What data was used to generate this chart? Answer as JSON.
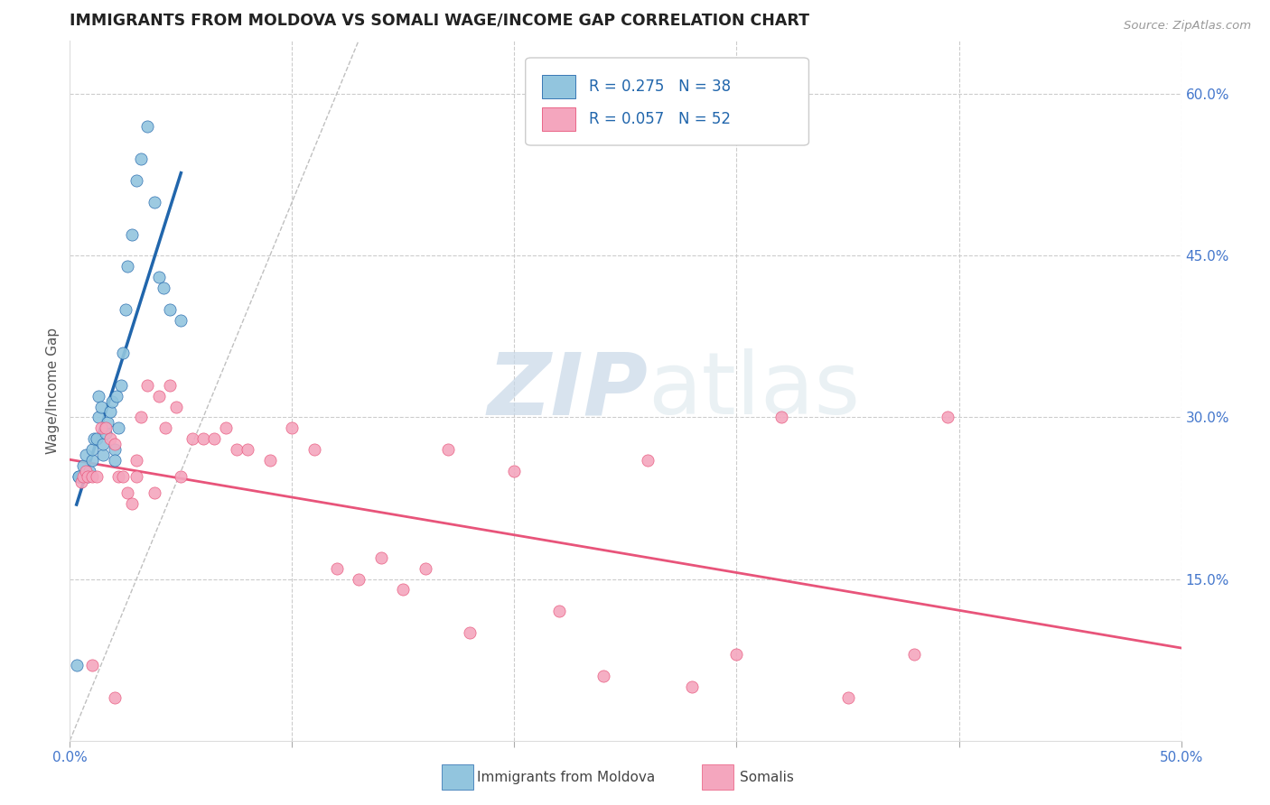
{
  "title": "IMMIGRANTS FROM MOLDOVA VS SOMALI WAGE/INCOME GAP CORRELATION CHART",
  "source": "Source: ZipAtlas.com",
  "ylabel": "Wage/Income Gap",
  "xlim": [
    0.0,
    0.5
  ],
  "ylim": [
    0.0,
    0.65
  ],
  "xticks": [
    0.0,
    0.1,
    0.2,
    0.3,
    0.4,
    0.5
  ],
  "xticklabels": [
    "0.0%",
    "",
    "",
    "",
    "",
    "50.0%"
  ],
  "yticks": [
    0.15,
    0.3,
    0.45,
    0.6
  ],
  "yticklabels": [
    "15.0%",
    "30.0%",
    "45.0%",
    "60.0%"
  ],
  "R_moldova": 0.275,
  "N_moldova": 38,
  "R_somali": 0.057,
  "N_somali": 52,
  "color_moldova": "#92c5de",
  "color_somali": "#f4a6be",
  "trendline_moldova_color": "#2166ac",
  "trendline_somali_color": "#e8547a",
  "diagonal_color": "#c0c0c0",
  "legend_label_moldova": "Immigrants from Moldova",
  "legend_label_somali": "Somalis",
  "watermark_zip": "ZIP",
  "watermark_atlas": "atlas",
  "moldova_x": [
    0.003,
    0.004,
    0.005,
    0.006,
    0.007,
    0.008,
    0.009,
    0.01,
    0.01,
    0.011,
    0.012,
    0.013,
    0.013,
    0.014,
    0.015,
    0.015,
    0.016,
    0.017,
    0.018,
    0.019,
    0.02,
    0.02,
    0.021,
    0.022,
    0.023,
    0.024,
    0.025,
    0.026,
    0.028,
    0.03,
    0.032,
    0.035,
    0.038,
    0.04,
    0.042,
    0.045,
    0.05,
    0.004
  ],
  "moldova_y": [
    0.07,
    0.245,
    0.245,
    0.255,
    0.265,
    0.245,
    0.25,
    0.26,
    0.27,
    0.28,
    0.28,
    0.3,
    0.32,
    0.31,
    0.265,
    0.275,
    0.285,
    0.295,
    0.305,
    0.315,
    0.27,
    0.26,
    0.32,
    0.29,
    0.33,
    0.36,
    0.4,
    0.44,
    0.47,
    0.52,
    0.54,
    0.57,
    0.5,
    0.43,
    0.42,
    0.4,
    0.39,
    0.245
  ],
  "somali_x": [
    0.005,
    0.006,
    0.007,
    0.008,
    0.01,
    0.012,
    0.014,
    0.016,
    0.018,
    0.02,
    0.022,
    0.024,
    0.026,
    0.028,
    0.03,
    0.03,
    0.032,
    0.035,
    0.038,
    0.04,
    0.043,
    0.045,
    0.048,
    0.05,
    0.055,
    0.06,
    0.065,
    0.07,
    0.075,
    0.08,
    0.09,
    0.1,
    0.11,
    0.12,
    0.13,
    0.14,
    0.15,
    0.16,
    0.17,
    0.18,
    0.2,
    0.22,
    0.24,
    0.26,
    0.28,
    0.3,
    0.32,
    0.35,
    0.38,
    0.395,
    0.01,
    0.02
  ],
  "somali_y": [
    0.24,
    0.245,
    0.25,
    0.245,
    0.245,
    0.245,
    0.29,
    0.29,
    0.28,
    0.275,
    0.245,
    0.245,
    0.23,
    0.22,
    0.26,
    0.245,
    0.3,
    0.33,
    0.23,
    0.32,
    0.29,
    0.33,
    0.31,
    0.245,
    0.28,
    0.28,
    0.28,
    0.29,
    0.27,
    0.27,
    0.26,
    0.29,
    0.27,
    0.16,
    0.15,
    0.17,
    0.14,
    0.16,
    0.27,
    0.1,
    0.25,
    0.12,
    0.06,
    0.26,
    0.05,
    0.08,
    0.3,
    0.04,
    0.08,
    0.3,
    0.07,
    0.04
  ]
}
